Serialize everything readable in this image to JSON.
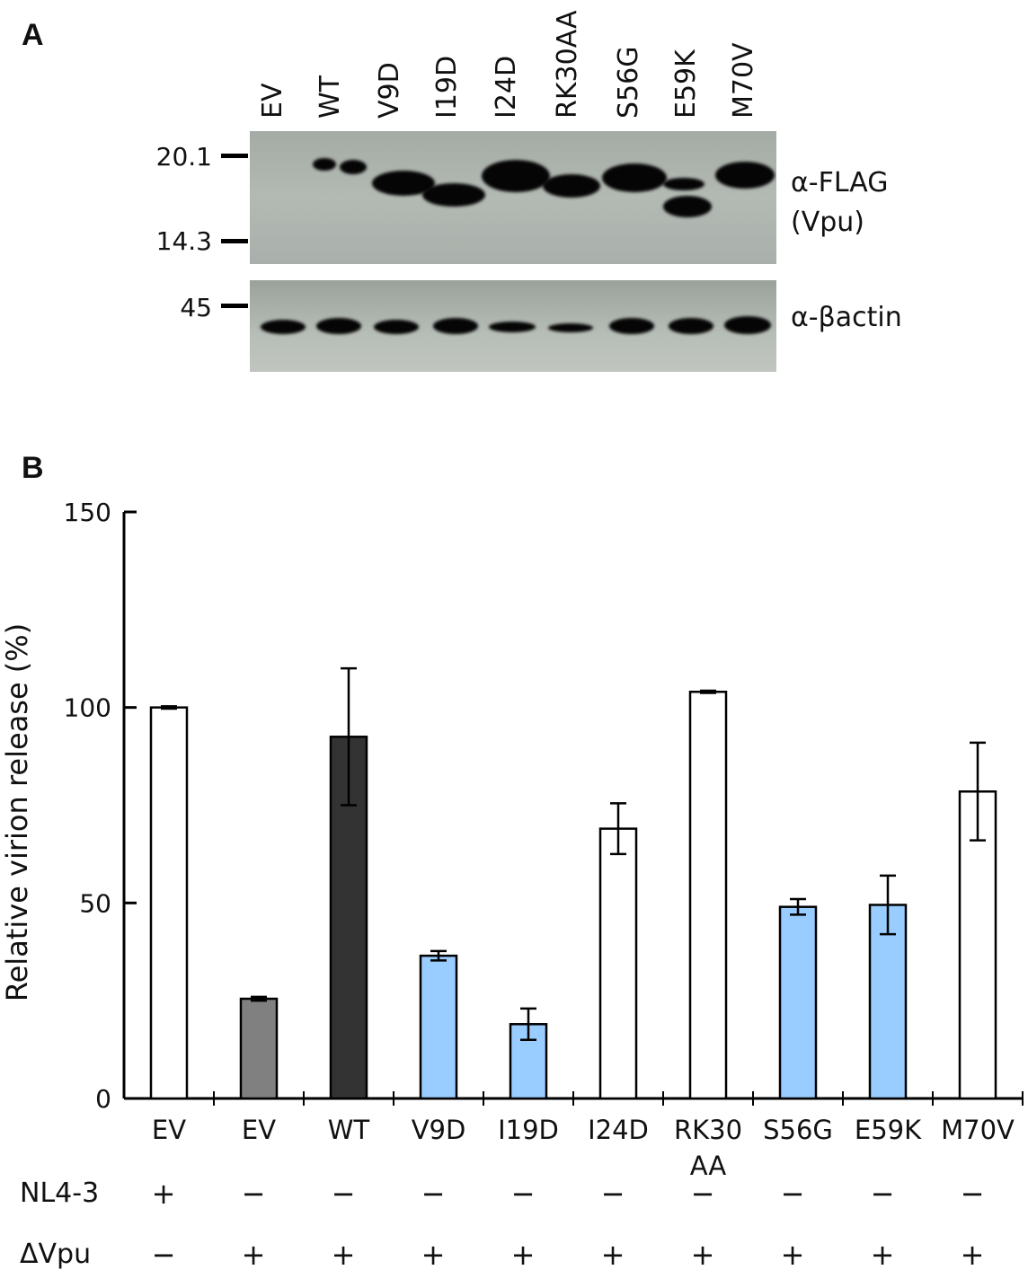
{
  "panel_a": {
    "letter": "A",
    "lanes": [
      "EV",
      "WT",
      "V9D",
      "I19D",
      "I24D",
      "RK30AA",
      "S56G",
      "E59K",
      "M70V"
    ],
    "markers_top": [
      "20.1",
      "14.3"
    ],
    "markers_bottom": [
      "45"
    ],
    "label_flag_line1": "α-FLAG",
    "label_flag_line2": "(Vpu)",
    "label_actin": "α-βactin"
  },
  "panel_b": {
    "letter": "B"
  },
  "chart_data": {
    "type": "bar",
    "ylabel": "Relative virion release (%)",
    "ylim": [
      0,
      150
    ],
    "yticks": [
      "0",
      "50",
      "100",
      "150"
    ],
    "categories": [
      "EV",
      "EV",
      "WT",
      "V9D",
      "I19D",
      "I24D",
      "RK30 AA",
      "S56G",
      "E59K",
      "M70V"
    ],
    "category_lines": [
      [
        "EV"
      ],
      [
        "EV"
      ],
      [
        "WT"
      ],
      [
        "V9D"
      ],
      [
        "I19D"
      ],
      [
        "I24D"
      ],
      [
        "RK30",
        "AA"
      ],
      [
        "S56G"
      ],
      [
        "E59K"
      ],
      [
        "M70V"
      ]
    ],
    "values": [
      100,
      25.5,
      92.5,
      36.5,
      19,
      69,
      104,
      49,
      49.5,
      78.5
    ],
    "errors": [
      0.3,
      0.5,
      17.5,
      1.2,
      4,
      6.5,
      0.3,
      2,
      7.5,
      12.5
    ],
    "colors": [
      "#ffffff",
      "#808080",
      "#333333",
      "#99ccff",
      "#99ccff",
      "#ffffff",
      "#ffffff",
      "#99ccff",
      "#99ccff",
      "#ffffff"
    ],
    "conditions": [
      {
        "name": "NL4-3",
        "values": [
          "+",
          "−",
          "−",
          "−",
          "−",
          "−",
          "−",
          "−",
          "−",
          "−"
        ]
      },
      {
        "name": "ΔVpu",
        "values": [
          "−",
          "+",
          "+",
          "+",
          "+",
          "+",
          "+",
          "+",
          "+",
          "+"
        ]
      }
    ]
  }
}
